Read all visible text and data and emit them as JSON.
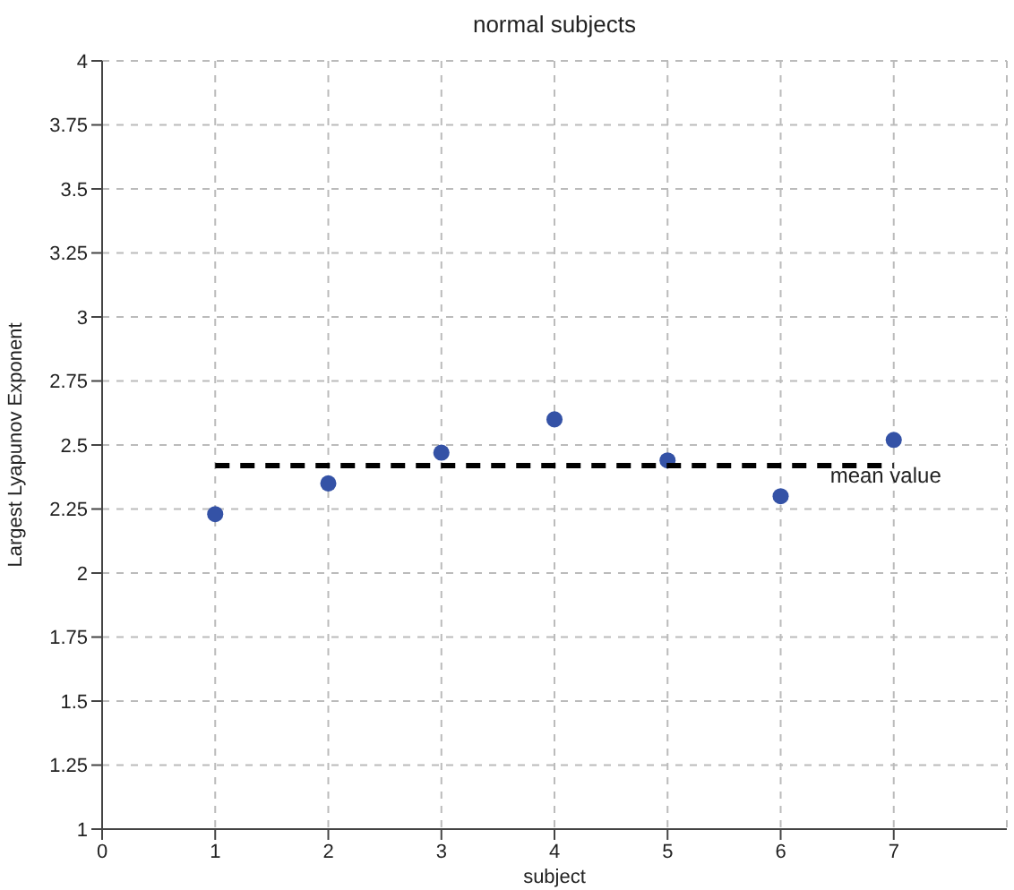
{
  "chart_data": {
    "type": "scatter",
    "title": "normal subjects",
    "xlabel": "subject",
    "ylabel": "Largest Lyapunov Exponent",
    "x": [
      1,
      2,
      3,
      4,
      5,
      6,
      7
    ],
    "series": [
      {
        "color": "#3452a6",
        "marker": "circle",
        "values": [
          2.23,
          2.35,
          2.47,
          2.6,
          2.44,
          2.3,
          2.52
        ]
      },
      {
        "name": "mean value",
        "type": "line",
        "x": [
          1,
          7
        ],
        "values": [
          2.42,
          2.42
        ],
        "color": "#000000",
        "line_style": "dashed",
        "marker": "none"
      }
    ],
    "xlim": [
      0,
      8
    ],
    "xticks": [
      0,
      1,
      2,
      3,
      4,
      5,
      6,
      7
    ],
    "ylim": [
      1,
      4
    ],
    "yticks": [
      1,
      1.25,
      1.5,
      1.75,
      2,
      2.25,
      2.5,
      2.75,
      3,
      3.25,
      3.5,
      3.75,
      4
    ],
    "grid": true
  }
}
